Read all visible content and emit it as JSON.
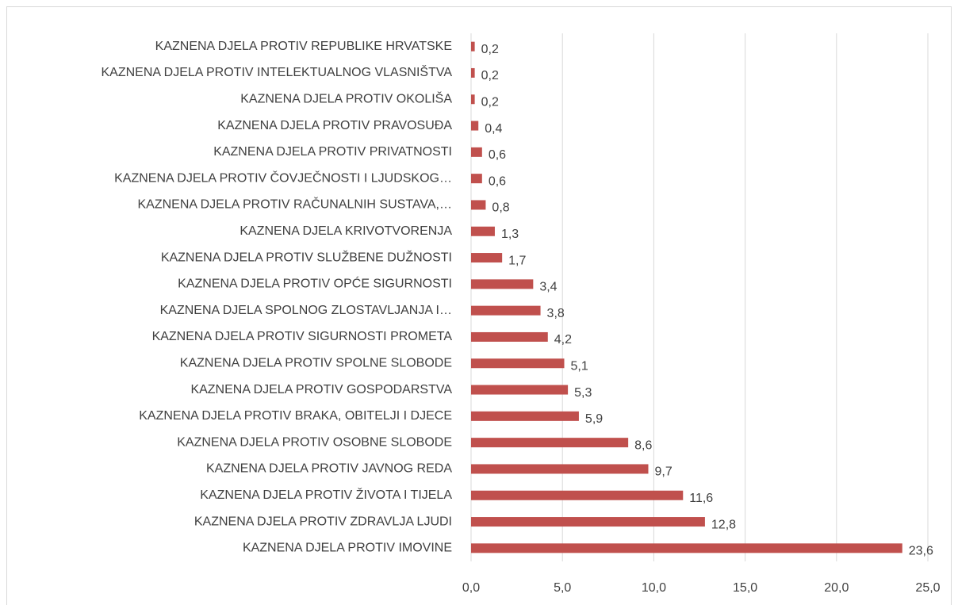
{
  "chart_data": {
    "type": "bar",
    "orientation": "horizontal",
    "categories": [
      "KAZNENA DJELA PROTIV REPUBLIKE HRVATSKE",
      "KAZNENA DJELA PROTIV INTELEKTUALNOG VLASNIŠTVA",
      "KAZNENA DJELA PROTIV OKOLIŠA",
      "KAZNENA DJELA PROTIV PRAVOSUĐA",
      "KAZNENA DJELA PROTIV PRIVATNOSTI",
      "KAZNENA DJELA PROTIV ČOVJEČNOSTI I LJUDSKOG…",
      "KAZNENA DJELA PROTIV RAČUNALNIH SUSTAVA,…",
      "KAZNENA DJELA KRIVOTVORENJA",
      "KAZNENA DJELA PROTIV SLUŽBENE DUŽNOSTI",
      "KAZNENA DJELA PROTIV OPĆE SIGURNOSTI",
      "KAZNENA DJELA SPOLNOG ZLOSTAVLJANJA I…",
      "KAZNENA DJELA PROTIV SIGURNOSTI PROMETA",
      "KAZNENA DJELA PROTIV SPOLNE SLOBODE",
      "KAZNENA DJELA PROTIV GOSPODARSTVA",
      "KAZNENA DJELA PROTIV BRAKA, OBITELJI I DJECE",
      "KAZNENA DJELA PROTIV OSOBNE SLOBODE",
      "KAZNENA DJELA PROTIV JAVNOG REDA",
      "KAZNENA DJELA PROTIV ŽIVOTA I TIJELA",
      "KAZNENA DJELA PROTIV ZDRAVLJA LJUDI",
      "KAZNENA DJELA PROTIV IMOVINE"
    ],
    "values": [
      0.2,
      0.2,
      0.2,
      0.4,
      0.6,
      0.6,
      0.8,
      1.3,
      1.7,
      3.4,
      3.8,
      4.2,
      5.1,
      5.3,
      5.9,
      8.6,
      9.7,
      11.6,
      12.8,
      23.6
    ],
    "value_labels": [
      "0,2",
      "0,2",
      "0,2",
      "0,4",
      "0,6",
      "0,6",
      "0,8",
      "1,3",
      "1,7",
      "3,4",
      "3,8",
      "4,2",
      "5,1",
      "5,3",
      "5,9",
      "8,6",
      "9,7",
      "11,6",
      "12,8",
      "23,6"
    ],
    "color": "#c0504d",
    "xlim": [
      0,
      25
    ],
    "xticks": [
      {
        "value": 0,
        "label": "0,0"
      },
      {
        "value": 5,
        "label": "5,0"
      },
      {
        "value": 10,
        "label": "10,0"
      },
      {
        "value": 15,
        "label": "15,0"
      },
      {
        "value": 20,
        "label": "20,0"
      },
      {
        "value": 25,
        "label": "25,0"
      }
    ],
    "grid": true
  }
}
